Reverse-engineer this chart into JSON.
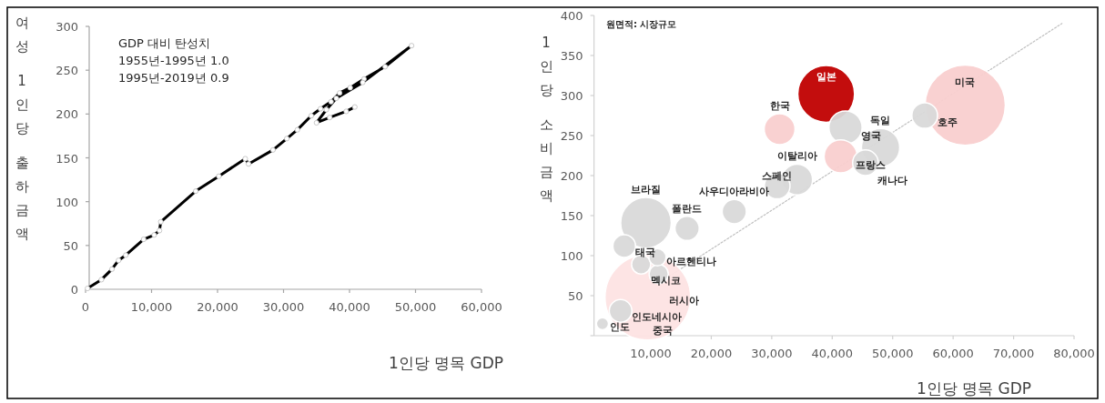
{
  "chart_data": [
    {
      "type": "line",
      "xlabel": "1인당 명목 GDP",
      "ylabel": "여성 1인당 출하금액",
      "annotations": [
        "GDP 대비 탄성치",
        "1955년-1995년 1.0",
        "1995년-2019년 0.9"
      ],
      "series": [
        {
          "color": "#000000",
          "x": [
            300,
            2400,
            4000,
            5000,
            6100,
            8800,
            10400,
            11200,
            11400,
            16700,
            20200,
            24200,
            24700,
            28400,
            30500,
            32100,
            34200,
            35600,
            37200,
            38500,
            40100,
            42200,
            45400,
            49400,
            42000,
            38000,
            36500,
            35000,
            37000,
            39500,
            40800
          ],
          "values": [
            1,
            11,
            23,
            33,
            39,
            57,
            62,
            67,
            77,
            112,
            129,
            149,
            143,
            159,
            172,
            182,
            198,
            206,
            214,
            224,
            230,
            240,
            254,
            278,
            236,
            218,
            205,
            190,
            196,
            203,
            208
          ]
        }
      ],
      "marker": "circle",
      "xlim": [
        0,
        60000
      ],
      "ylim": [
        0,
        300
      ],
      "xticks": [
        0,
        {
          "value": 10000,
          "label": "10,000"
        },
        {
          "value": 20000,
          "label": "20,000"
        },
        {
          "value": 30000,
          "label": "30,000"
        },
        {
          "value": 40000,
          "label": "40,000"
        },
        {
          "value": 50000,
          "label": "50,000"
        },
        {
          "value": 60000,
          "label": "60,000"
        }
      ],
      "yticks": [
        0,
        50,
        100,
        150,
        200,
        250,
        300
      ]
    },
    {
      "type": "bubble",
      "xlabel": "1인당 명목 GDP",
      "ylabel": "1인당 소비금액",
      "annotations": [
        "원면적: 시장규모",
        {
          "text": "일본",
          "x": 39000,
          "y": 302
        },
        {
          "text": "미국",
          "x": 62000,
          "y": 288
        },
        {
          "text": "호주",
          "x": 55300,
          "y": 275
        },
        {
          "text": "한국",
          "x": 31300,
          "y": 258
        },
        {
          "text": "영국",
          "x": 42200,
          "y": 260
        },
        {
          "text": "독일",
          "x": 48000,
          "y": 235
        },
        {
          "text": "프랑스",
          "x": 41400,
          "y": 224
        },
        {
          "text": "캐나다",
          "x": 45500,
          "y": 216
        },
        {
          "text": "이탈리아",
          "x": 34200,
          "y": 195
        },
        {
          "text": "스페인",
          "x": 30900,
          "y": 187
        },
        {
          "text": "사우디아라비아",
          "x": 23800,
          "y": 155
        },
        {
          "text": "브라질",
          "x": 9200,
          "y": 141
        },
        {
          "text": "폴란드",
          "x": 16000,
          "y": 134
        },
        {
          "text": "태국",
          "x": 5600,
          "y": 112
        },
        {
          "text": "아르헨티나",
          "x": 11100,
          "y": 98
        },
        {
          "text": "멕시코",
          "x": 8400,
          "y": 89
        },
        {
          "text": "러시아",
          "x": 11300,
          "y": 77
        },
        {
          "text": "인도네시아",
          "x": 5000,
          "y": 31
        },
        {
          "text": "중국",
          "x": 9500,
          "y": 48
        },
        {
          "text": "인도",
          "x": 2000,
          "y": 15
        }
      ],
      "series": [
        {
          "type": "line",
          "color": "#bfbfbf",
          "line_style": "dotted",
          "x": [
            13000,
            78000
          ],
          "values": [
            74,
            390
          ]
        },
        {
          "type": "bubble",
          "x": [
            9500,
            62000,
            39000,
            9200,
            48000,
            42200,
            41400,
            31300,
            34200,
            30900,
            45500,
            55300,
            23800,
            16000,
            5600,
            5000,
            8400,
            11300,
            11100,
            2000
          ],
          "values": [
            48,
            288,
            302,
            141,
            235,
            260,
            224,
            258,
            195,
            187,
            216,
            275,
            155,
            134,
            112,
            31,
            89,
            77,
            98,
            15
          ],
          "sizes": [
            1,
            0.88,
            0.44,
            0.35,
            0.2,
            0.15,
            0.15,
            0.13,
            0.13,
            0.09,
            0.09,
            0.09,
            0.08,
            0.08,
            0.07,
            0.07,
            0.05,
            0.05,
            0.04,
            0.02
          ],
          "colors": [
            "#fde3e3",
            "#f9cfcf",
            "#c00000",
            "#d9d9d9",
            "#d9d9d9",
            "#d9d9d9",
            "#f9cfcf",
            "#f9cfcf",
            "#d9d9d9",
            "#d9d9d9",
            "#d9d9d9",
            "#d9d9d9",
            "#d9d9d9",
            "#d9d9d9",
            "#d9d9d9",
            "#d9d9d9",
            "#d9d9d9",
            "#d9d9d9",
            "#d9d9d9",
            "#d9d9d9"
          ]
        }
      ],
      "xlim": [
        0,
        80000
      ],
      "ylim": [
        0,
        400
      ],
      "xticks": [
        {
          "value": 10000,
          "label": "10,000"
        },
        {
          "value": 20000,
          "label": "20,000"
        },
        {
          "value": 30000,
          "label": "30,000"
        },
        {
          "value": 40000,
          "label": "40,000"
        },
        {
          "value": 50000,
          "label": "50,000"
        },
        {
          "value": 60000,
          "label": "60,000"
        },
        {
          "value": 70000,
          "label": "70,000"
        },
        {
          "value": 80000,
          "label": "80,000"
        }
      ],
      "yticks": [
        {
          "value": 0,
          "label": null
        },
        50,
        100,
        150,
        200,
        250,
        300,
        350,
        400
      ]
    }
  ]
}
